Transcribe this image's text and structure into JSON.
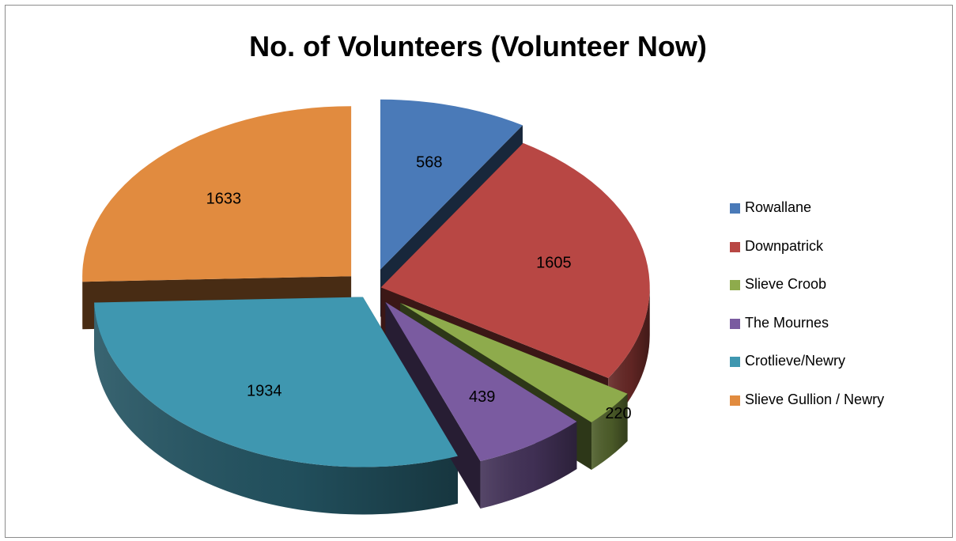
{
  "chart_data": {
    "type": "pie",
    "title": "No. of Volunteers (Volunteer Now)",
    "legend_position": "right",
    "series": [
      {
        "name": "Rowallane",
        "value": 568,
        "color": "#4a7ab8"
      },
      {
        "name": "Downpatrick",
        "value": 1605,
        "color": "#b84744"
      },
      {
        "name": "Slieve Croob",
        "value": 220,
        "color": "#8eab4c"
      },
      {
        "name": "The Mournes",
        "value": 439,
        "color": "#7a5ba0"
      },
      {
        "name": "Crotlieve/Newry",
        "value": 1934,
        "color": "#3f97b0"
      },
      {
        "name": "Slieve Gullion / Newry",
        "value": 1633,
        "color": "#e18b3f"
      }
    ]
  }
}
